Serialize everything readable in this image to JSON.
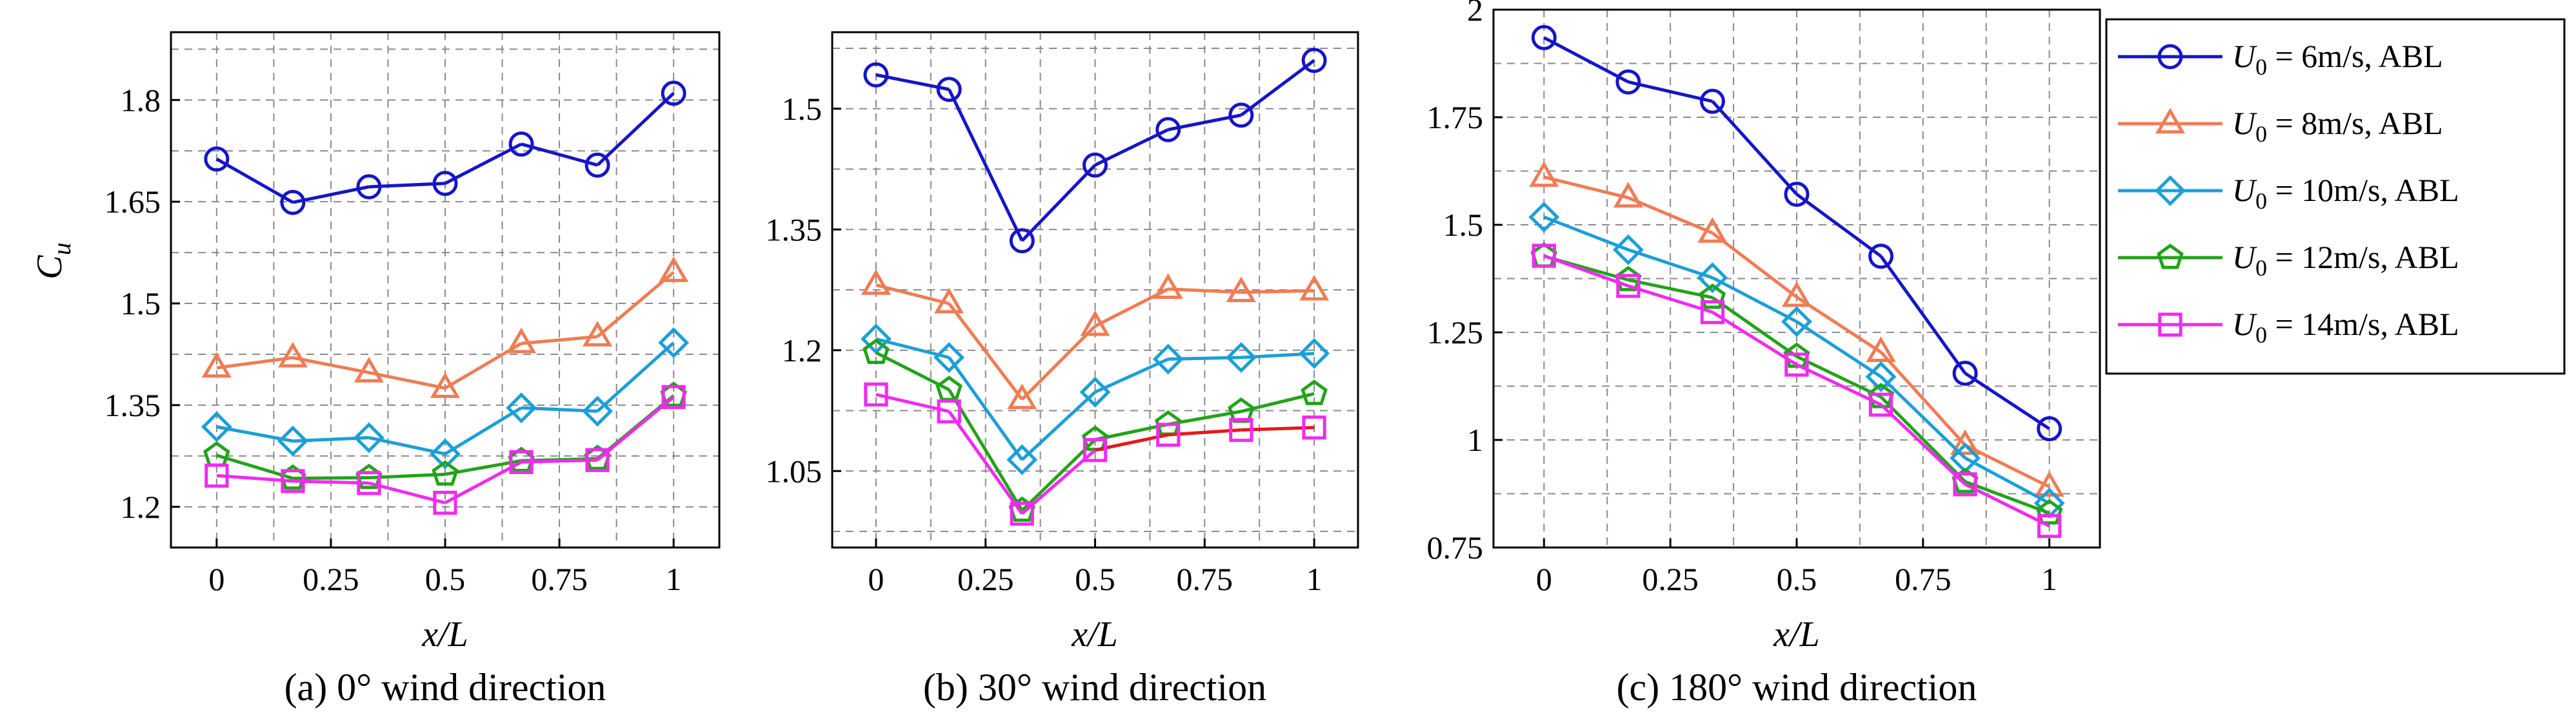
{
  "legend": [
    {
      "var": "U",
      "sub": "0",
      "text": " = 6m/s, ABL"
    },
    {
      "var": "U",
      "sub": "0",
      "text": " = 8m/s, ABL"
    },
    {
      "var": "U",
      "sub": "0",
      "text": " = 10m/s, ABL"
    },
    {
      "var": "U",
      "sub": "0",
      "text": " = 12m/s, ABL"
    },
    {
      "var": "U",
      "sub": "0",
      "text": " = 14m/s, ABL"
    }
  ],
  "chart_data": [
    {
      "type": "line",
      "caption": "(a) 0° wind direction",
      "xlabel": "x/L",
      "ylabel_main": "C",
      "ylabel_sub": "u",
      "xlim": [
        -0.1,
        1.1
      ],
      "ylim": [
        1.14,
        1.9
      ],
      "xticks": [
        0,
        0.25,
        0.5,
        0.75,
        1
      ],
      "xtick_labels": [
        "0",
        "0.25",
        "0.5",
        "0.75",
        "1"
      ],
      "yticks": [
        1.2,
        1.35,
        1.5,
        1.65,
        1.8
      ],
      "ytick_labels": [
        "1.2",
        "1.35",
        "1.5",
        "1.65",
        "1.8"
      ],
      "x": [
        0,
        0.1667,
        0.3333,
        0.5,
        0.6667,
        0.8333,
        1
      ],
      "series": [
        {
          "name": "U0 = 6m/s, ABL",
          "marker": "circle",
          "color": "#1515c8",
          "values": [
            1.713,
            1.649,
            1.672,
            1.677,
            1.735,
            1.704,
            1.81
          ]
        },
        {
          "name": "U0 = 8m/s, ABL",
          "marker": "triangle",
          "color": "#f07c54",
          "values": [
            1.405,
            1.42,
            1.398,
            1.375,
            1.441,
            1.451,
            1.546
          ]
        },
        {
          "name": "U0 = 10m/s, ABL",
          "marker": "diamond",
          "color": "#1c9fd6",
          "values": [
            1.318,
            1.297,
            1.302,
            1.278,
            1.346,
            1.341,
            1.442
          ]
        },
        {
          "name": "U0 = 12m/s, ABL",
          "marker": "pentagon",
          "color": "#22a31a",
          "values": [
            1.276,
            1.242,
            1.243,
            1.248,
            1.268,
            1.271,
            1.364
          ]
        },
        {
          "name": "U0 = 14m/s, ABL",
          "marker": "square",
          "color": "#f02bf0",
          "values": [
            1.246,
            1.238,
            1.235,
            1.206,
            1.266,
            1.269,
            1.362
          ]
        }
      ]
    },
    {
      "type": "line",
      "caption": "(b) 30° wind direction",
      "xlabel": "x/L",
      "ylim": [
        0.955,
        1.595
      ],
      "xlim": [
        -0.1,
        1.1
      ],
      "xticks": [
        0,
        0.25,
        0.5,
        0.75,
        1
      ],
      "xtick_labels": [
        "0",
        "0.25",
        "0.5",
        "0.75",
        "1"
      ],
      "yticks": [
        1.05,
        1.2,
        1.35,
        1.5
      ],
      "ytick_labels": [
        "1.05",
        "1.2",
        "1.35",
        "1.5"
      ],
      "x": [
        0,
        0.1667,
        0.3333,
        0.5,
        0.6667,
        0.8333,
        1
      ],
      "series": [
        {
          "name": "U0 = 6m/s, ABL",
          "marker": "circle",
          "color": "#1515c8",
          "values": [
            1.542,
            1.524,
            1.336,
            1.43,
            1.474,
            1.492,
            1.56
          ]
        },
        {
          "name": "U0 = 8m/s, ABL",
          "marker": "triangle",
          "color": "#f07c54",
          "values": [
            1.281,
            1.258,
            1.139,
            1.23,
            1.276,
            1.272,
            1.274
          ]
        },
        {
          "name": "U0 = 10m/s, ABL",
          "marker": "diamond",
          "color": "#1c9fd6",
          "values": [
            1.214,
            1.191,
            1.064,
            1.148,
            1.189,
            1.191,
            1.196
          ]
        },
        {
          "name": "U0 = 12m/s, ABL",
          "marker": "pentagon",
          "color": "#22a31a",
          "values": [
            1.197,
            1.151,
            1.001,
            1.089,
            1.108,
            1.124,
            1.146
          ]
        },
        {
          "name": "U0 = 14m/s, ABL",
          "marker": "square",
          "color": "#f02bf0",
          "values": [
            1.145,
            1.124,
            0.997,
            1.076,
            1.095,
            1.101,
            1.104
          ],
          "segment_colors": [
            "#f02bf0",
            "#f02bf0",
            "#f02bf0",
            "#e31a1a",
            "#e31a1a",
            "#e31a1a"
          ]
        }
      ]
    },
    {
      "type": "line",
      "caption": "(c) 180° wind direction",
      "xlabel": "x/L",
      "xlim": [
        -0.1,
        1.1
      ],
      "ylim": [
        0.75,
        2.0
      ],
      "xticks": [
        0,
        0.25,
        0.5,
        0.75,
        1
      ],
      "xtick_labels": [
        "0",
        "0.25",
        "0.5",
        "0.75",
        "1"
      ],
      "yticks": [
        0.75,
        1,
        1.25,
        1.5,
        1.75,
        2
      ],
      "ytick_labels": [
        "0.75",
        "1",
        "1.25",
        "1.5",
        "1.75",
        "2"
      ],
      "x": [
        0,
        0.1667,
        0.3333,
        0.5,
        0.6667,
        0.8333,
        1
      ],
      "series": [
        {
          "name": "U0 = 6m/s, ABL",
          "marker": "circle",
          "color": "#1515c8",
          "values": [
            1.935,
            1.832,
            1.787,
            1.571,
            1.427,
            1.155,
            1.026
          ]
        },
        {
          "name": "U0 = 8m/s, ABL",
          "marker": "triangle",
          "color": "#f07c54",
          "values": [
            1.611,
            1.563,
            1.481,
            1.332,
            1.204,
            0.988,
            0.891
          ]
        },
        {
          "name": "U0 = 10m/s, ABL",
          "marker": "diamond",
          "color": "#1c9fd6",
          "values": [
            1.518,
            1.442,
            1.377,
            1.275,
            1.147,
            0.958,
            0.853
          ]
        },
        {
          "name": "U0 = 12m/s, ABL",
          "marker": "pentagon",
          "color": "#22a31a",
          "values": [
            1.427,
            1.372,
            1.331,
            1.194,
            1.1,
            0.903,
            0.83
          ]
        },
        {
          "name": "U0 = 14m/s, ABL",
          "marker": "square",
          "color": "#f02bf0",
          "values": [
            1.428,
            1.358,
            1.297,
            1.175,
            1.082,
            0.897,
            0.8
          ]
        }
      ]
    }
  ]
}
